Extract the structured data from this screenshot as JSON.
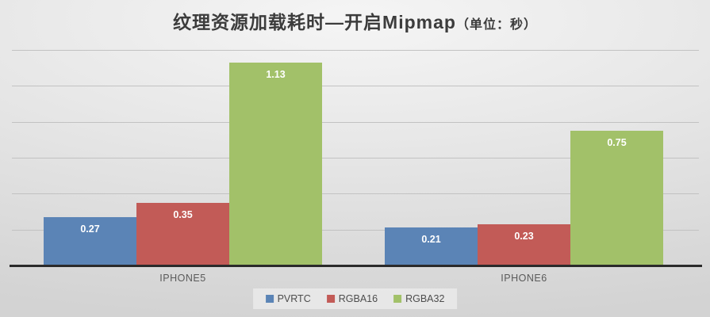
{
  "title": {
    "main": "纹理资源加载耗时—开启Mipmap",
    "unit": "（单位：秒）"
  },
  "chart_data": {
    "type": "bar",
    "title": "纹理资源加载耗时—开启Mipmap（单位：秒）",
    "categories": [
      "IPHONE5",
      "IPHONE6"
    ],
    "series": [
      {
        "name": "PVRTC",
        "color": "#5b84b6",
        "values": [
          0.27,
          0.21
        ]
      },
      {
        "name": "RGBA16",
        "color": "#c25b57",
        "values": [
          0.35,
          0.23
        ]
      },
      {
        "name": "RGBA32",
        "color": "#a2c169",
        "values": [
          1.13,
          0.75
        ]
      }
    ],
    "ylim": [
      0,
      1.2
    ],
    "gridline_step": 0.2,
    "grid": true,
    "yaxis_labels_visible": false,
    "legend_position": "bottom",
    "value_labels": "inside-end"
  },
  "colors": {
    "grid": "#c2c2c2",
    "axis": "#2b2b2b",
    "title_text": "#3c3c3c",
    "category_text": "#5a5a5a",
    "value_label_text": "#ffffff"
  }
}
